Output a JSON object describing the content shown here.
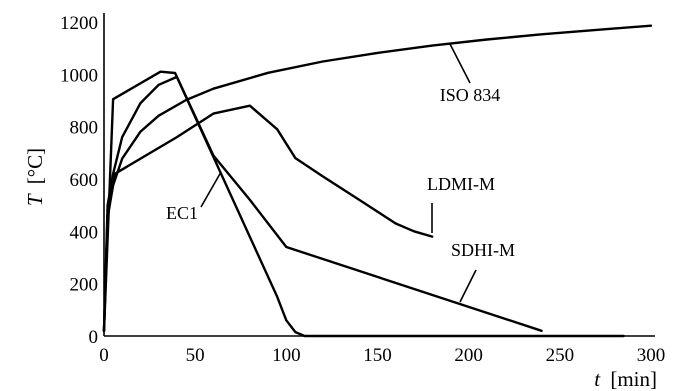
{
  "chart_data": {
    "type": "line",
    "xlabel": {
      "italic": "t",
      "unit": "[min]"
    },
    "ylabel": {
      "italic": "T",
      "unit": "[°C]"
    },
    "xlim": [
      0,
      300
    ],
    "ylim": [
      0,
      1200
    ],
    "xticks": [
      "0",
      "50",
      "100",
      "150",
      "200",
      "250",
      "300"
    ],
    "yticks": [
      "0",
      "200",
      "400",
      "600",
      "800",
      "1000",
      "1200"
    ],
    "grid": false,
    "series": [
      {
        "name": "ISO 834",
        "x": [
          0,
          2,
          5,
          10,
          20,
          30,
          45,
          60,
          90,
          120,
          150,
          180,
          210,
          240,
          270,
          300
        ],
        "y": [
          20,
          465,
          576,
          678,
          781,
          842,
          902,
          945,
          1006,
          1049,
          1082,
          1110,
          1133,
          1153,
          1170,
          1186
        ]
      },
      {
        "name": "EC1",
        "x": [
          0,
          5,
          31,
          39,
          95,
          100,
          105,
          110,
          285
        ],
        "y": [
          20,
          905,
          1010,
          1005,
          150,
          60,
          15,
          0,
          0
        ]
      },
      {
        "name": "LDMI-M",
        "x": [
          0,
          2,
          6,
          40,
          60,
          80,
          95,
          105,
          120,
          140,
          160,
          170,
          180
        ],
        "y": [
          20,
          450,
          620,
          760,
          850,
          880,
          790,
          680,
          610,
          520,
          430,
          400,
          380
        ]
      },
      {
        "name": "SDHI-M",
        "x": [
          0,
          2,
          5,
          10,
          20,
          30,
          40,
          60,
          80,
          100,
          240
        ],
        "y": [
          20,
          500,
          620,
          760,
          890,
          960,
          990,
          690,
          520,
          340,
          20
        ]
      }
    ],
    "annotations": [
      {
        "text": "ISO 834",
        "points_to": "ISO 834"
      },
      {
        "text": "LDMI-M",
        "points_to": "LDMI-M"
      },
      {
        "text": "SDHI-M",
        "points_to": "SDHI-M"
      },
      {
        "text": "EC1",
        "points_to": "EC1"
      }
    ]
  }
}
